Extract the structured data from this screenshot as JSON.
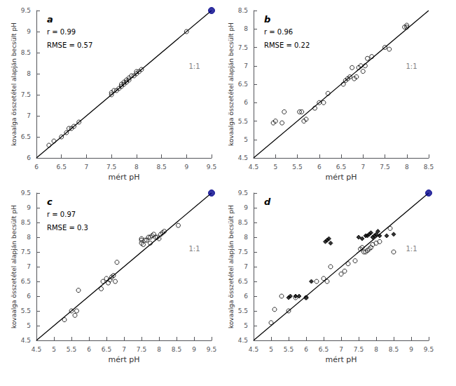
{
  "chart_data": [
    {
      "type": "scatter",
      "title": "a",
      "annotations": [
        "r = 0.99",
        "RMSE = 0.57",
        "1:1"
      ],
      "xlabel": "mért pH",
      "ylabel": "kovaalga összetétel alapján becsült pH",
      "xlim": [
        6,
        9.5
      ],
      "ylim": [
        6,
        9.5
      ],
      "xticks": [
        6,
        6.5,
        7,
        7.5,
        8,
        8.5,
        9,
        9.5
      ],
      "yticks": [
        6,
        6.5,
        7,
        7.5,
        8,
        8.5,
        9,
        9.5
      ],
      "grid": false,
      "series": [
        {
          "type": "line",
          "line_style": "solid",
          "color": "#000000",
          "x": [
            6,
            9.5
          ],
          "values": [
            6,
            9.5
          ]
        },
        {
          "type": "scatter",
          "marker": "open_circle",
          "color": "#000000",
          "x": [
            6.25,
            6.35,
            6.5,
            6.6,
            6.65,
            6.7,
            6.75,
            6.85,
            7.5,
            7.5,
            7.55,
            7.6,
            7.65,
            7.7,
            7.7,
            7.75,
            7.75,
            7.8,
            7.8,
            7.85,
            7.85,
            7.9,
            7.95,
            8.0,
            8.0,
            8.05,
            8.1,
            9.0
          ],
          "values": [
            6.3,
            6.4,
            6.5,
            6.6,
            6.7,
            6.7,
            6.75,
            6.85,
            7.5,
            7.55,
            7.6,
            7.6,
            7.65,
            7.7,
            7.75,
            7.75,
            7.8,
            7.8,
            7.85,
            7.85,
            7.9,
            7.95,
            7.95,
            8.0,
            8.05,
            8.05,
            8.1,
            9.0
          ]
        },
        {
          "type": "scatter",
          "marker": "circle",
          "color": "#00008B",
          "x": [
            9.5
          ],
          "values": [
            9.5
          ]
        }
      ]
    },
    {
      "type": "scatter",
      "title": "b",
      "annotations": [
        "r = 0.96",
        "RMSE = 0.22",
        "1:1"
      ],
      "xlabel": "mért pH",
      "ylabel": "kovaalga összetétel alapján becsült pH",
      "xlim": [
        4.5,
        8.5
      ],
      "ylim": [
        4.5,
        8.5
      ],
      "xticks": [
        4.5,
        5,
        5.5,
        6,
        6.5,
        7,
        7.5,
        8,
        8.5
      ],
      "yticks": [
        4.5,
        5,
        5.5,
        6,
        6.5,
        7,
        7.5,
        8,
        8.5
      ],
      "grid": false,
      "series": [
        {
          "type": "line",
          "line_style": "solid",
          "color": "#000000",
          "x": [
            4.5,
            8.5
          ],
          "values": [
            4.5,
            8.5
          ]
        },
        {
          "type": "scatter",
          "marker": "open_circle",
          "color": "#000000",
          "x": [
            4.95,
            5.0,
            5.15,
            5.2,
            5.55,
            5.6,
            5.65,
            5.7,
            5.9,
            6.0,
            6.1,
            6.2,
            6.55,
            6.6,
            6.65,
            6.7,
            6.75,
            6.8,
            6.85,
            6.9,
            6.95,
            7.0,
            7.05,
            7.1,
            7.2,
            7.5,
            7.6,
            7.95,
            8.0,
            8.0
          ],
          "values": [
            5.45,
            5.5,
            5.45,
            5.75,
            5.75,
            5.75,
            5.5,
            5.55,
            5.85,
            6.0,
            6.0,
            6.25,
            6.5,
            6.6,
            6.65,
            6.7,
            6.95,
            6.65,
            6.7,
            6.95,
            7.0,
            6.85,
            7.0,
            7.2,
            7.25,
            7.5,
            7.45,
            8.05,
            8.1,
            8.05
          ]
        }
      ]
    },
    {
      "type": "scatter",
      "title": "c",
      "annotations": [
        "r = 0.97",
        "RMSE = 0.3",
        "1:1"
      ],
      "xlabel": "mért pH",
      "ylabel": "kovaalga összetétel alapján becsült pH",
      "xlim": [
        4.5,
        9.5
      ],
      "ylim": [
        4.5,
        9.5
      ],
      "xticks": [
        4.5,
        5,
        5.5,
        6,
        6.5,
        7,
        7.5,
        8,
        8.5,
        9,
        9.5
      ],
      "yticks": [
        4.5,
        5,
        5.5,
        6,
        6.5,
        7,
        7.5,
        8,
        8.5,
        9,
        9.5
      ],
      "grid": false,
      "series": [
        {
          "type": "line",
          "line_style": "solid",
          "color": "#000000",
          "x": [
            4.5,
            9.5
          ],
          "values": [
            4.5,
            9.5
          ]
        },
        {
          "type": "scatter",
          "marker": "open_circle",
          "color": "#000000",
          "x": [
            5.3,
            5.5,
            5.6,
            5.65,
            5.7,
            6.35,
            6.4,
            6.5,
            6.55,
            6.6,
            6.65,
            6.7,
            6.75,
            6.8,
            7.5,
            7.5,
            7.5,
            7.55,
            7.6,
            7.65,
            7.7,
            7.75,
            7.75,
            7.8,
            7.85,
            7.9,
            7.95,
            8.0,
            8.05,
            8.1,
            8.15,
            8.55
          ],
          "values": [
            5.2,
            5.5,
            5.35,
            5.5,
            6.2,
            6.25,
            6.5,
            6.6,
            6.45,
            6.55,
            6.65,
            6.7,
            6.5,
            7.15,
            7.8,
            7.9,
            7.95,
            7.75,
            7.9,
            7.9,
            8.0,
            7.8,
            8.0,
            8.05,
            8.1,
            8.0,
            8.0,
            7.95,
            8.1,
            8.15,
            8.2,
            8.4
          ]
        },
        {
          "type": "scatter",
          "marker": "circle",
          "color": "#00008B",
          "x": [
            9.5
          ],
          "values": [
            9.5
          ]
        }
      ]
    },
    {
      "type": "scatter",
      "title": "d",
      "annotations": [
        "1:1"
      ],
      "xlabel": "mért pH",
      "ylabel": "kovaalga összetétel alapján becsült pH",
      "xlim": [
        4.5,
        9.5
      ],
      "ylim": [
        4.5,
        9.5
      ],
      "xticks": [
        4.5,
        5,
        5.5,
        6,
        6.5,
        7,
        7.5,
        8,
        8.5,
        9,
        9.5
      ],
      "yticks": [
        4.5,
        5,
        5.5,
        6,
        6.5,
        7,
        7.5,
        8,
        8.5,
        9,
        9.5
      ],
      "grid": false,
      "series": [
        {
          "type": "line",
          "line_style": "solid",
          "color": "#000000",
          "x": [
            4.5,
            9.5
          ],
          "values": [
            4.5,
            9.5
          ]
        },
        {
          "type": "scatter",
          "marker": "open_circle",
          "color": "#000000",
          "x": [
            5.0,
            5.1,
            5.3,
            5.5,
            5.7,
            6.0,
            6.3,
            6.5,
            6.6,
            6.7,
            7.0,
            7.1,
            7.2,
            7.4,
            7.55,
            7.6,
            7.65,
            7.7,
            7.75,
            7.8,
            7.85,
            7.9,
            8.0,
            8.1,
            8.4,
            8.5
          ],
          "values": [
            5.1,
            5.55,
            6.0,
            5.5,
            5.95,
            5.95,
            6.5,
            6.6,
            6.5,
            7.0,
            6.75,
            6.85,
            7.1,
            7.2,
            7.6,
            7.65,
            7.5,
            7.5,
            7.55,
            7.6,
            7.65,
            7.75,
            7.8,
            7.85,
            8.3,
            7.5
          ]
        },
        {
          "type": "scatter",
          "marker": "diamond",
          "color": "#000000",
          "x": [
            5.5,
            5.55,
            5.7,
            5.8,
            6.0,
            6.15,
            6.55,
            6.6,
            6.65,
            6.7,
            7.5,
            7.6,
            7.7,
            7.75,
            7.8,
            7.85,
            7.9,
            7.95,
            8.0,
            8.05,
            8.1,
            8.3,
            8.5
          ],
          "values": [
            5.95,
            6.0,
            6.0,
            6.0,
            5.95,
            6.5,
            7.85,
            7.9,
            7.95,
            7.8,
            8.0,
            7.95,
            8.05,
            8.05,
            8.1,
            8.15,
            8.0,
            8.05,
            8.1,
            8.2,
            8.05,
            8.05,
            8.1
          ]
        },
        {
          "type": "scatter",
          "marker": "circle",
          "color": "#00008B",
          "x": [
            9.5
          ],
          "values": [
            9.5
          ]
        }
      ]
    }
  ]
}
